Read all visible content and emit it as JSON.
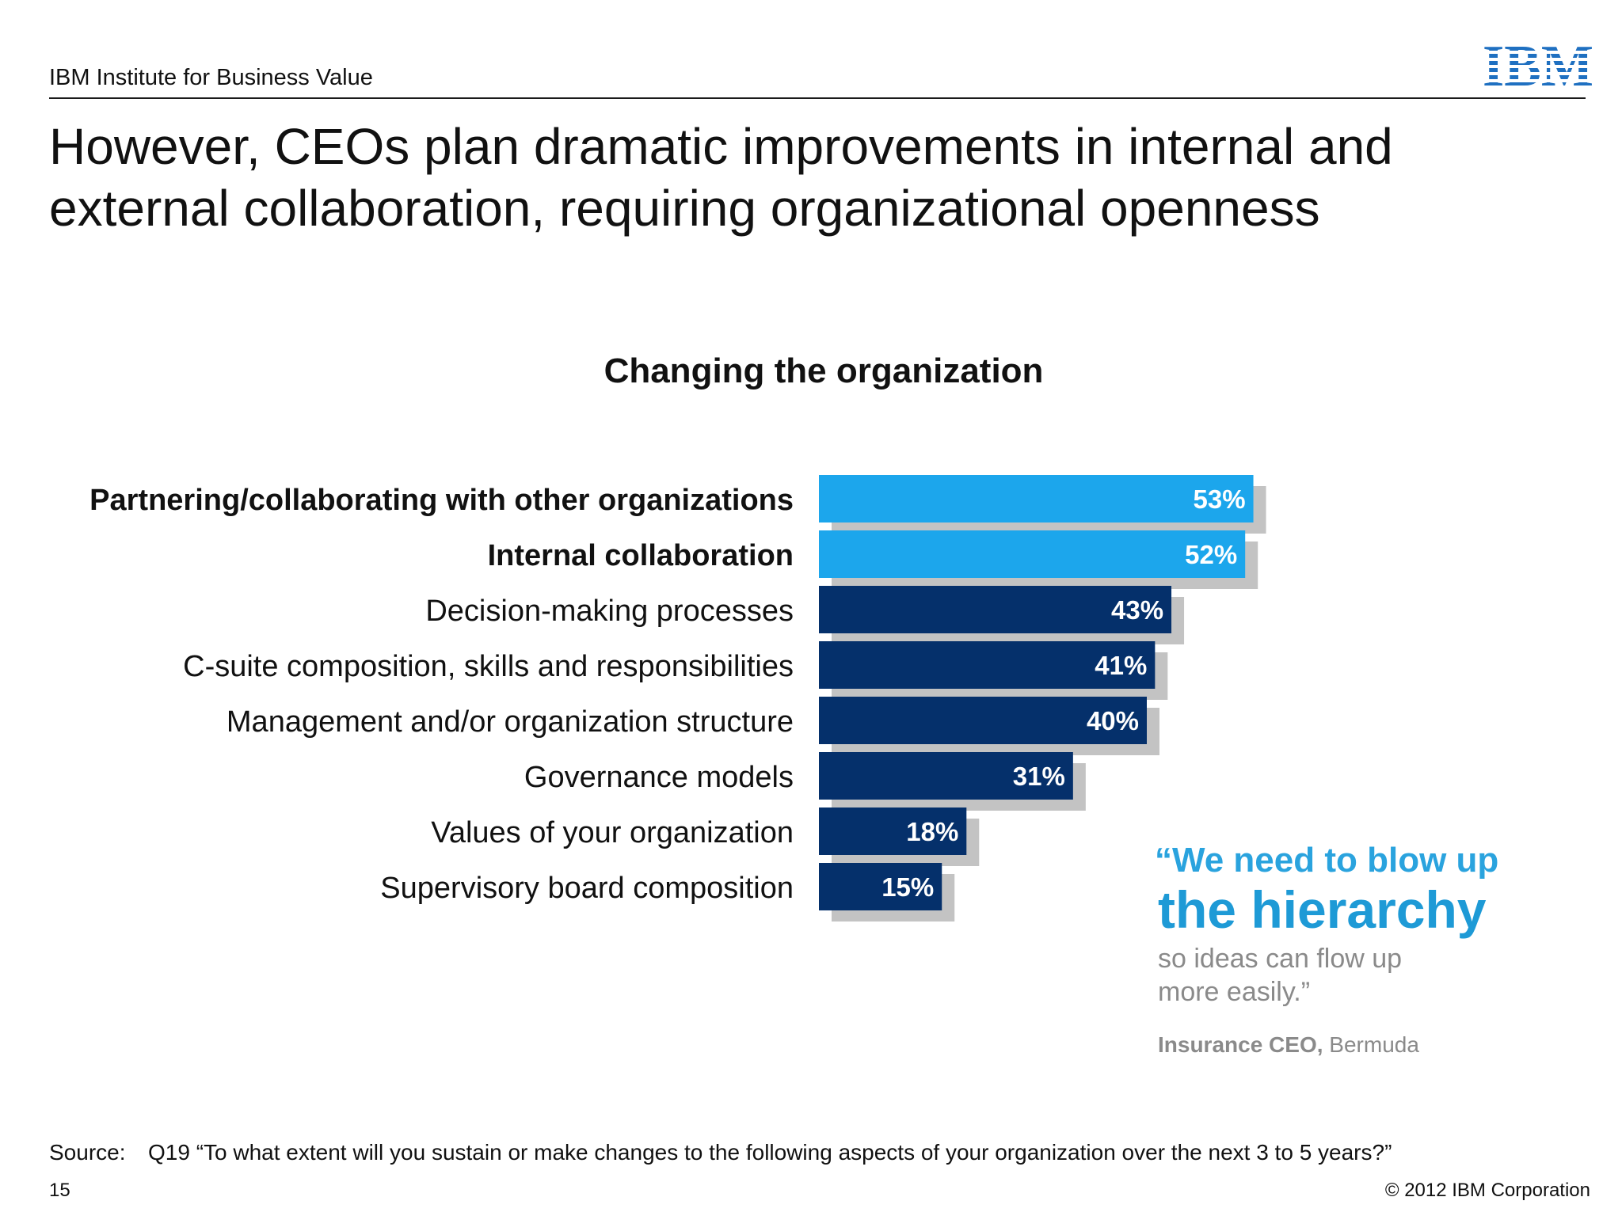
{
  "header": {
    "org": "IBM Institute for Business Value",
    "logo_text": "IBM"
  },
  "title": "However, CEOs plan dramatic improvements in internal and external collaboration, requiring organizational openness",
  "chart_data": {
    "type": "bar",
    "orientation": "horizontal",
    "title": "Changing the organization",
    "categories": [
      "Partnering/collaborating with other organizations",
      "Internal collaboration",
      "Decision-making processes",
      "C-suite composition, skills and responsibilities",
      "Management and/or organization structure",
      "Governance models",
      "Values of your organization",
      "Supervisory board composition"
    ],
    "values": [
      53,
      52,
      43,
      41,
      40,
      31,
      18,
      15
    ],
    "value_labels": [
      "53%",
      "52%",
      "43%",
      "41%",
      "40%",
      "31%",
      "18%",
      "15%"
    ],
    "highlighted": [
      true,
      true,
      false,
      false,
      false,
      false,
      false,
      false
    ],
    "colors": {
      "highlight": "#1ca6ec",
      "normal": "#05306b",
      "shadow": "#c3c3c3"
    },
    "xlim": [
      0,
      100
    ]
  },
  "quote": {
    "line1": "“We need to blow up",
    "line2": "the hierarchy",
    "line3": "so ideas can flow up more easily.”",
    "attribution_role": "Insurance CEO,",
    "attribution_place": " Bermuda"
  },
  "footer": {
    "source_label": "Source:",
    "source_text": "Q19 “To what extent will you sustain or make changes to the following aspects of your organization over the next 3 to 5 years?”",
    "page_number": "15",
    "copyright": "© 2012 IBM Corporation"
  }
}
